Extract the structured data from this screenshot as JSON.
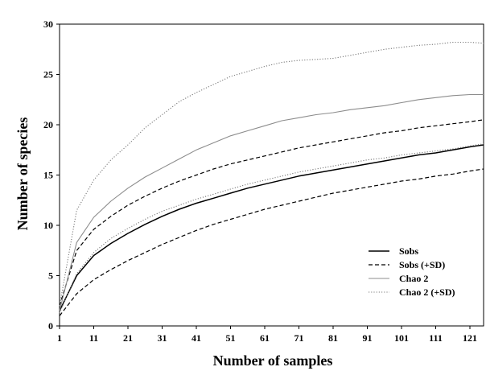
{
  "chart_data": {
    "type": "line",
    "xlabel": "Number of samples",
    "ylabel": "Number of species",
    "xlim": [
      1,
      125
    ],
    "ylim": [
      0,
      30
    ],
    "x_ticks": [
      1,
      11,
      21,
      31,
      41,
      51,
      61,
      71,
      81,
      91,
      101,
      111,
      121
    ],
    "x_tick_labels": [
      "1",
      "11",
      "21",
      "31",
      "41",
      "51",
      "61",
      "71",
      "81",
      "91",
      "101",
      "111",
      "121"
    ],
    "y_ticks": [
      0,
      5,
      10,
      15,
      20,
      25,
      30
    ],
    "y_tick_labels": [
      "0",
      "5",
      "10",
      "15",
      "20",
      "25",
      "30"
    ],
    "grid": false,
    "legend_position": "bottom-right",
    "x": [
      1,
      6,
      11,
      16,
      21,
      26,
      31,
      36,
      41,
      46,
      51,
      56,
      61,
      66,
      71,
      76,
      81,
      86,
      91,
      96,
      101,
      106,
      111,
      116,
      121,
      125
    ],
    "series": [
      {
        "name": "Sobs",
        "style": "solid-black",
        "values": [
          1.5,
          5.0,
          7.0,
          8.2,
          9.2,
          10.1,
          10.9,
          11.6,
          12.2,
          12.7,
          13.2,
          13.7,
          14.1,
          14.5,
          14.9,
          15.2,
          15.5,
          15.8,
          16.1,
          16.4,
          16.7,
          17.0,
          17.2,
          17.5,
          17.8,
          18.0
        ]
      },
      {
        "name": "Sobs (±SD) upper",
        "style": "dashed-black",
        "values": [
          2.0,
          7.5,
          9.6,
          10.9,
          12.0,
          12.9,
          13.7,
          14.4,
          15.0,
          15.6,
          16.1,
          16.5,
          16.9,
          17.3,
          17.7,
          18.0,
          18.3,
          18.6,
          18.9,
          19.2,
          19.4,
          19.7,
          19.9,
          20.1,
          20.3,
          20.5
        ]
      },
      {
        "name": "Sobs (±SD) lower",
        "style": "dashed-black",
        "values": [
          1.0,
          3.2,
          4.6,
          5.6,
          6.5,
          7.3,
          8.1,
          8.8,
          9.5,
          10.1,
          10.6,
          11.1,
          11.6,
          12.0,
          12.4,
          12.8,
          13.2,
          13.5,
          13.8,
          14.1,
          14.4,
          14.6,
          14.9,
          15.1,
          15.4,
          15.6
        ]
      },
      {
        "name": "Chao 2",
        "style": "solid-gray",
        "values": [
          1.5,
          8.3,
          10.8,
          12.4,
          13.7,
          14.8,
          15.7,
          16.6,
          17.5,
          18.2,
          18.9,
          19.4,
          19.9,
          20.4,
          20.7,
          21.0,
          21.2,
          21.5,
          21.7,
          21.9,
          22.2,
          22.5,
          22.7,
          22.9,
          23.0,
          23.0
        ]
      },
      {
        "name": "Chao 2 (±SD) upper",
        "style": "dotted-gray",
        "values": [
          2.0,
          11.5,
          14.5,
          16.5,
          18.0,
          19.7,
          21.0,
          22.3,
          23.2,
          24.0,
          24.8,
          25.3,
          25.8,
          26.2,
          26.4,
          26.5,
          26.6,
          26.9,
          27.2,
          27.5,
          27.7,
          27.9,
          28.0,
          28.2,
          28.2,
          28.1
        ]
      },
      {
        "name": "Chao 2 (±SD) lower",
        "style": "dotted-gray",
        "values": [
          1.3,
          5.2,
          7.3,
          8.7,
          9.7,
          10.6,
          11.4,
          12.0,
          12.6,
          13.1,
          13.6,
          14.1,
          14.5,
          14.9,
          15.3,
          15.6,
          15.9,
          16.2,
          16.5,
          16.7,
          17.0,
          17.2,
          17.4,
          17.6,
          17.9,
          18.1
        ]
      }
    ],
    "legend": [
      {
        "label": "Sobs",
        "style": "solid-black"
      },
      {
        "label": "Sobs (+SD)",
        "style": "dashed-black"
      },
      {
        "label": "Chao 2",
        "style": "solid-gray"
      },
      {
        "label": "Chao 2 (+SD)",
        "style": "dotted-gray"
      }
    ]
  }
}
